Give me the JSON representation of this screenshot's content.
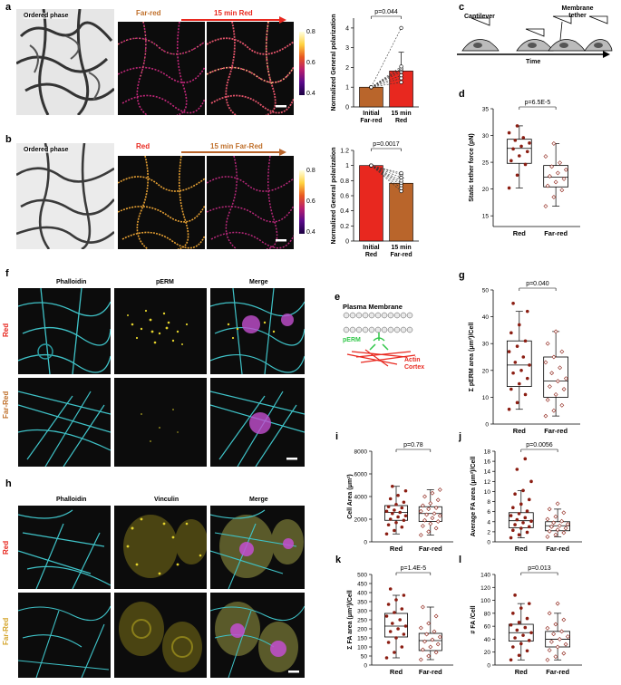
{
  "panels": {
    "a": {
      "label": "a",
      "ordered_phase": "Ordered phase",
      "start_condition": "Far-red",
      "arrow_label": "15 min Red",
      "colorbar_ticks": [
        "0.8",
        "0.6",
        "0.4"
      ]
    },
    "b": {
      "label": "b",
      "ordered_phase": "Ordered phase",
      "start_condition": "Red",
      "arrow_label": "15 min Far-Red",
      "colorbar_ticks": [
        "0.8",
        "0.6",
        "0.4"
      ]
    },
    "c": {
      "label": "c",
      "cantilever": "Cantilever",
      "membrane_tether": "Membrane tether",
      "time_label": "Time"
    },
    "e": {
      "label": "e",
      "plasma_membrane": "Plasma Membrane",
      "perm": "pERM",
      "actin_cortex": "Actin Cortex"
    },
    "f": {
      "label": "f",
      "col1": "Phalloidin",
      "col2": "pERM",
      "col3": "Merge",
      "row1": "Red",
      "row2": "Far-Red"
    },
    "h": {
      "label": "h",
      "col1": "Phalloidin",
      "col2": "Vinculin",
      "col3": "Merge",
      "row1": "Red",
      "row2": "Far-Red"
    }
  },
  "chart_data": [
    {
      "panel": "a",
      "type": "bar",
      "categories": [
        "Initial Far-red",
        "15 min Red"
      ],
      "cat_lines": [
        [
          "Initial",
          "Far-red"
        ],
        [
          "15 min",
          "Red"
        ]
      ],
      "values": [
        1.0,
        1.82
      ],
      "errors": [
        0,
        0.95
      ],
      "bar_colors": [
        "#b9652b",
        "#e8281f"
      ],
      "ylabel": "Normalized General polarization",
      "ylim": [
        0,
        4.5
      ],
      "yticks": [
        0,
        1,
        2,
        3,
        4
      ],
      "pvalue": "p=0.044",
      "paired_points": [
        [
          1.0,
          1.25
        ],
        [
          1.0,
          1.45
        ],
        [
          1.0,
          1.6
        ],
        [
          1.0,
          1.78
        ],
        [
          1.0,
          1.88
        ],
        [
          1.0,
          1.95
        ],
        [
          1.0,
          2.05
        ],
        [
          1.0,
          4.0
        ]
      ]
    },
    {
      "panel": "b",
      "type": "bar",
      "categories": [
        "Initial Red",
        "15 min Far-red"
      ],
      "cat_lines": [
        [
          "Initial",
          "Red"
        ],
        [
          "15 min",
          "Far-red"
        ]
      ],
      "values": [
        1.0,
        0.765
      ],
      "errors": [
        0,
        0.07
      ],
      "bar_colors": [
        "#e8281f",
        "#b9652b"
      ],
      "ylabel": "Normalized General polarization",
      "ylim": [
        0,
        1.2
      ],
      "yticks": [
        0.0,
        0.2,
        0.4,
        0.6,
        0.8,
        1.0,
        1.2
      ],
      "pvalue": "p=0.0017",
      "paired_points": [
        [
          1.0,
          0.66
        ],
        [
          1.0,
          0.7
        ],
        [
          1.0,
          0.74
        ],
        [
          1.0,
          0.77
        ],
        [
          1.0,
          0.8
        ],
        [
          1.0,
          0.84
        ],
        [
          1.0,
          0.88
        ],
        [
          1.0,
          0.9
        ]
      ]
    },
    {
      "panel": "d",
      "type": "box",
      "categories": [
        "Red",
        "Far-red"
      ],
      "ylabel": "Static tether force (pN)",
      "ylim": [
        13,
        35
      ],
      "yticks": [
        15,
        20,
        25,
        30,
        35
      ],
      "pvalue": "p=6.5E-5",
      "boxes": [
        {
          "q1": 24.8,
          "median": 27.6,
          "q3": 29.3,
          "whisker_low": 20.2,
          "whisker_high": 31.8
        },
        {
          "q1": 20.4,
          "median": 22.2,
          "q3": 24.4,
          "whisker_low": 16.8,
          "whisker_high": 28.5
        }
      ],
      "points": [
        [
          20.2,
          22.6,
          24.6,
          25.3,
          26.2,
          27.0,
          27.5,
          28.0,
          28.6,
          29.1,
          29.6,
          30.5,
          31.8
        ],
        [
          16.8,
          18.5,
          19.8,
          20.6,
          21.3,
          21.9,
          22.4,
          23.0,
          23.6,
          24.2,
          24.9,
          26.1,
          28.5
        ]
      ]
    },
    {
      "panel": "g",
      "type": "box",
      "categories": [
        "Red",
        "Far-red"
      ],
      "ylabel": "Σ pERM area (μm²)/Cell",
      "ylim": [
        0,
        50
      ],
      "yticks": [
        0,
        10,
        20,
        30,
        40,
        50
      ],
      "pvalue": "p=0.040",
      "boxes": [
        {
          "q1": 14.0,
          "median": 22.0,
          "q3": 31.0,
          "whisker_low": 5.5,
          "whisker_high": 42.0
        },
        {
          "q1": 10.0,
          "median": 16.0,
          "q3": 25.0,
          "whisker_low": 3.0,
          "whisker_high": 34.5
        }
      ],
      "points": [
        [
          5.5,
          8,
          11,
          13,
          15,
          17,
          19,
          20,
          22,
          23,
          25,
          27,
          29,
          31,
          34,
          37,
          42,
          45
        ],
        [
          3,
          5,
          7,
          9,
          11,
          13,
          14,
          16,
          17,
          19,
          21,
          23,
          25,
          27,
          30,
          34.5
        ]
      ]
    },
    {
      "panel": "i",
      "type": "box",
      "categories": [
        "Red",
        "Far-red"
      ],
      "ylabel": "Cell Area (μm²)",
      "ylim": [
        0,
        8000
      ],
      "yticks": [
        0,
        2000,
        4000,
        6000,
        8000
      ],
      "pvalue": "p=0.78",
      "boxes": [
        {
          "q1": 1900,
          "median": 2600,
          "q3": 3200,
          "whisker_low": 700,
          "whisker_high": 4900
        },
        {
          "q1": 1800,
          "median": 2500,
          "q3": 3100,
          "whisker_low": 600,
          "whisker_high": 4600
        }
      ],
      "points": [
        [
          700,
          1000,
          1300,
          1500,
          1700,
          1900,
          2000,
          2200,
          2300,
          2500,
          2600,
          2700,
          2800,
          3000,
          3100,
          3300,
          3500,
          3800,
          4100,
          4500,
          4900
        ],
        [
          600,
          900,
          1200,
          1400,
          1600,
          1800,
          1900,
          2100,
          2300,
          2400,
          2500,
          2700,
          2900,
          3000,
          3200,
          3400,
          3700,
          4000,
          4300,
          4600
        ]
      ]
    },
    {
      "panel": "j",
      "type": "box",
      "categories": [
        "Red",
        "Far-red"
      ],
      "ylabel": "Average FA area (μm²)/Cell",
      "ylim": [
        0,
        18
      ],
      "yticks": [
        0,
        2,
        4,
        6,
        8,
        10,
        12,
        14,
        16,
        18
      ],
      "pvalue": "p=0.0056",
      "boxes": [
        {
          "q1": 2.8,
          "median": 4.2,
          "q3": 5.8,
          "whisker_low": 0.8,
          "whisker_high": 10.2
        },
        {
          "q1": 2.2,
          "median": 3.2,
          "q3": 4.0,
          "whisker_low": 1.0,
          "whisker_high": 6.5
        }
      ],
      "points": [
        [
          0.8,
          1.4,
          1.9,
          2.3,
          2.7,
          3.0,
          3.4,
          3.8,
          4.1,
          4.4,
          4.8,
          5.2,
          5.6,
          6.1,
          6.8,
          7.5,
          8.4,
          9.5,
          10.2,
          12.0,
          14.4,
          16.5
        ],
        [
          1.0,
          1.4,
          1.8,
          2.1,
          2.4,
          2.7,
          3.0,
          3.2,
          3.5,
          3.8,
          4.1,
          4.5,
          5.0,
          5.8,
          6.5,
          7.6
        ]
      ]
    },
    {
      "panel": "k",
      "type": "box",
      "categories": [
        "Red",
        "Far-red"
      ],
      "ylabel": "Σ FA area (μm²)/Cell",
      "ylim": [
        0,
        500
      ],
      "yticks": [
        0,
        50,
        100,
        150,
        200,
        250,
        300,
        350,
        400,
        450,
        500
      ],
      "pvalue": "p=1.4E-5",
      "boxes": [
        {
          "q1": 155,
          "median": 215,
          "q3": 285,
          "whisker_low": 40,
          "whisker_high": 385
        },
        {
          "q1": 80,
          "median": 135,
          "q3": 175,
          "whisker_low": 30,
          "whisker_high": 320
        }
      ],
      "points": [
        [
          40,
          70,
          100,
          125,
          150,
          170,
          185,
          200,
          215,
          230,
          250,
          270,
          290,
          310,
          335,
          360,
          385,
          420
        ],
        [
          30,
          50,
          70,
          85,
          100,
          115,
          130,
          140,
          155,
          170,
          185,
          205,
          230,
          270,
          320
        ]
      ]
    },
    {
      "panel": "l",
      "type": "box",
      "categories": [
        "Red",
        "Far-red"
      ],
      "ylabel": "# FA /Cell",
      "ylim": [
        0,
        140
      ],
      "yticks": [
        0,
        20,
        40,
        60,
        80,
        100,
        120,
        140
      ],
      "pvalue": "p=0.013",
      "boxes": [
        {
          "q1": 37,
          "median": 50,
          "q3": 63,
          "whisker_low": 8,
          "whisker_high": 95
        },
        {
          "q1": 28,
          "median": 40,
          "q3": 52,
          "whisker_low": 8,
          "whisker_high": 80
        }
      ],
      "points": [
        [
          8,
          15,
          22,
          28,
          33,
          38,
          42,
          46,
          50,
          54,
          58,
          62,
          66,
          72,
          80,
          88,
          95,
          108
        ],
        [
          8,
          13,
          18,
          23,
          28,
          32,
          36,
          40,
          44,
          48,
          52,
          57,
          63,
          70,
          80,
          95
        ]
      ]
    }
  ]
}
